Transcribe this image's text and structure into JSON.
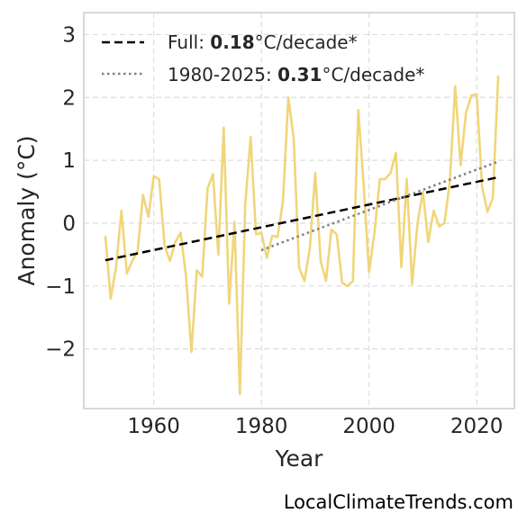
{
  "chart_data": {
    "type": "line",
    "xlabel": "Year",
    "ylabel": "Anomaly (°C)",
    "xlim": [
      1947,
      2027
    ],
    "ylim": [
      -2.95,
      3.35
    ],
    "xticks": [
      1960,
      1980,
      2000,
      2020
    ],
    "yticks": [
      3,
      2,
      1,
      0,
      -1,
      -2
    ],
    "ytick_labels": [
      "3",
      "2",
      "1",
      "0",
      "−1",
      "−2"
    ],
    "grid": true,
    "legend_position": "top-left",
    "series": [
      {
        "style": "line",
        "color": "#f0d67a",
        "x": [
          1951,
          1952,
          1953,
          1954,
          1955,
          1956,
          1957,
          1958,
          1959,
          1960,
          1961,
          1962,
          1963,
          1964,
          1965,
          1966,
          1967,
          1968,
          1969,
          1970,
          1971,
          1972,
          1973,
          1974,
          1975,
          1976,
          1977,
          1978,
          1979,
          1980,
          1981,
          1982,
          1983,
          1984,
          1985,
          1986,
          1987,
          1988,
          1989,
          1990,
          1991,
          1992,
          1993,
          1994,
          1995,
          1996,
          1997,
          1998,
          1999,
          2000,
          2001,
          2002,
          2003,
          2004,
          2005,
          2006,
          2007,
          2008,
          2009,
          2010,
          2011,
          2012,
          2013,
          2014,
          2015,
          2016,
          2017,
          2018,
          2019,
          2020,
          2021,
          2022,
          2023,
          2024
        ],
        "values": [
          -0.2,
          -1.2,
          -0.7,
          0.2,
          -0.8,
          -0.6,
          -0.45,
          0.45,
          0.1,
          0.75,
          0.7,
          -0.35,
          -0.6,
          -0.3,
          -0.15,
          -0.85,
          -2.05,
          -0.75,
          -0.85,
          0.55,
          0.78,
          -0.5,
          1.52,
          -1.28,
          0.02,
          -2.72,
          0.3,
          1.37,
          -0.18,
          -0.15,
          -0.55,
          -0.2,
          -0.22,
          0.35,
          2.0,
          1.35,
          -0.7,
          -0.92,
          -0.4,
          0.8,
          -0.6,
          -0.92,
          -0.1,
          -0.18,
          -0.95,
          -1.0,
          -0.92,
          1.8,
          0.6,
          -0.78,
          -0.15,
          0.7,
          0.7,
          0.8,
          1.12,
          -0.7,
          0.7,
          -0.97,
          0.0,
          0.5,
          -0.3,
          0.2,
          -0.05,
          0.0,
          0.65,
          2.18,
          0.92,
          1.75,
          2.03,
          2.05,
          0.58,
          0.18,
          0.4,
          2.35
        ]
      },
      {
        "name": "Full: 0.18°C/decade*",
        "style": "dashed",
        "color": "#000000",
        "x": [
          1951,
          2024
        ],
        "values": [
          -0.59,
          0.73
        ]
      },
      {
        "name": "1980-2025: 0.31°C/decade*",
        "style": "dotted",
        "color": "#808080",
        "x": [
          1980,
          2024
        ],
        "values": [
          -0.43,
          0.98
        ]
      }
    ],
    "legend": [
      {
        "prefix": "Full: ",
        "bold": "0.18",
        "suffix": "°C/decade*"
      },
      {
        "prefix": "1980-2025: ",
        "bold": "0.31",
        "suffix": "°C/decade*"
      }
    ]
  },
  "credit": "LocalClimateTrends.com"
}
